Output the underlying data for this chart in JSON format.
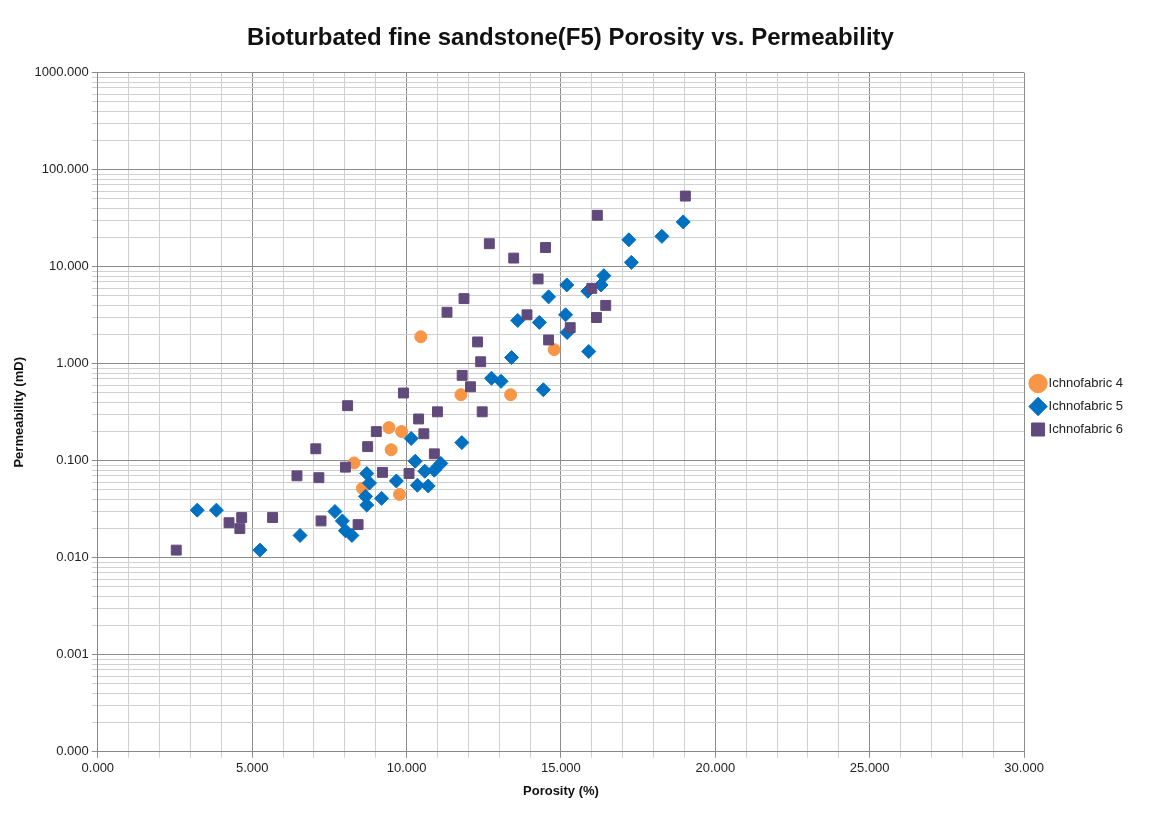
{
  "chart_data": {
    "type": "scatter",
    "title": "Bioturbated fine sandstone(F5) Porosity vs. Permeability",
    "xlabel": "Porosity (%)",
    "ylabel": "Permeability (mD)",
    "log": "y",
    "grid": true,
    "legend": "right",
    "xlim": [
      0,
      30
    ],
    "ylim": [
      0.0001,
      1000
    ],
    "xticks": [
      {
        "value": 0,
        "label": "0.000"
      },
      {
        "value": 1,
        "label": null
      },
      {
        "value": 2,
        "label": null
      },
      {
        "value": 3,
        "label": null
      },
      {
        "value": 4,
        "label": null
      },
      {
        "value": 5,
        "label": "5.000"
      },
      {
        "value": 6,
        "label": null
      },
      {
        "value": 7,
        "label": null
      },
      {
        "value": 8,
        "label": null
      },
      {
        "value": 9,
        "label": null
      },
      {
        "value": 10,
        "label": "10.000"
      },
      {
        "value": 11,
        "label": null
      },
      {
        "value": 12,
        "label": null
      },
      {
        "value": 13,
        "label": null
      },
      {
        "value": 14,
        "label": null
      },
      {
        "value": 15,
        "label": "15.000"
      },
      {
        "value": 16,
        "label": null
      },
      {
        "value": 17,
        "label": null
      },
      {
        "value": 18,
        "label": null
      },
      {
        "value": 19,
        "label": null
      },
      {
        "value": 20,
        "label": "20.000"
      },
      {
        "value": 21,
        "label": null
      },
      {
        "value": 22,
        "label": null
      },
      {
        "value": 23,
        "label": null
      },
      {
        "value": 24,
        "label": null
      },
      {
        "value": 25,
        "label": "25.000"
      },
      {
        "value": 26,
        "label": null
      },
      {
        "value": 27,
        "label": null
      },
      {
        "value": 28,
        "label": null
      },
      {
        "value": 29,
        "label": null
      },
      {
        "value": 30,
        "label": "30.000"
      }
    ],
    "yticks": [
      {
        "value": 0.0001,
        "label": "0.000"
      },
      {
        "value": 0.0002,
        "label": null
      },
      {
        "value": 0.0003,
        "label": null
      },
      {
        "value": 0.0004,
        "label": null
      },
      {
        "value": 0.0005,
        "label": null
      },
      {
        "value": 0.0006,
        "label": null
      },
      {
        "value": 0.0007,
        "label": null
      },
      {
        "value": 0.0008,
        "label": null
      },
      {
        "value": 0.0009,
        "label": null
      },
      {
        "value": 0.001,
        "label": "0.001"
      },
      {
        "value": 0.002,
        "label": null
      },
      {
        "value": 0.003,
        "label": null
      },
      {
        "value": 0.004,
        "label": null
      },
      {
        "value": 0.005,
        "label": null
      },
      {
        "value": 0.006,
        "label": null
      },
      {
        "value": 0.007,
        "label": null
      },
      {
        "value": 0.008,
        "label": null
      },
      {
        "value": 0.009,
        "label": null
      },
      {
        "value": 0.01,
        "label": "0.010"
      },
      {
        "value": 0.02,
        "label": null
      },
      {
        "value": 0.03,
        "label": null
      },
      {
        "value": 0.04,
        "label": null
      },
      {
        "value": 0.05,
        "label": null
      },
      {
        "value": 0.06,
        "label": null
      },
      {
        "value": 0.07,
        "label": null
      },
      {
        "value": 0.08,
        "label": null
      },
      {
        "value": 0.09,
        "label": null
      },
      {
        "value": 0.1,
        "label": "0.100"
      },
      {
        "value": 0.2,
        "label": null
      },
      {
        "value": 0.3,
        "label": null
      },
      {
        "value": 0.4,
        "label": null
      },
      {
        "value": 0.5,
        "label": null
      },
      {
        "value": 0.6,
        "label": null
      },
      {
        "value": 0.7,
        "label": null
      },
      {
        "value": 0.8,
        "label": null
      },
      {
        "value": 0.9,
        "label": null
      },
      {
        "value": 1,
        "label": "1.000"
      },
      {
        "value": 2,
        "label": null
      },
      {
        "value": 3,
        "label": null
      },
      {
        "value": 4,
        "label": null
      },
      {
        "value": 5,
        "label": null
      },
      {
        "value": 6,
        "label": null
      },
      {
        "value": 7,
        "label": null
      },
      {
        "value": 8,
        "label": null
      },
      {
        "value": 9,
        "label": null
      },
      {
        "value": 10,
        "label": "10.000"
      },
      {
        "value": 20,
        "label": null
      },
      {
        "value": 30,
        "label": null
      },
      {
        "value": 40,
        "label": null
      },
      {
        "value": 50,
        "label": null
      },
      {
        "value": 60,
        "label": null
      },
      {
        "value": 70,
        "label": null
      },
      {
        "value": 80,
        "label": null
      },
      {
        "value": 90,
        "label": null
      },
      {
        "value": 100,
        "label": "100.000"
      },
      {
        "value": 200,
        "label": null
      },
      {
        "value": 300,
        "label": null
      },
      {
        "value": 400,
        "label": null
      },
      {
        "value": 500,
        "label": null
      },
      {
        "value": 600,
        "label": null
      },
      {
        "value": 700,
        "label": null
      },
      {
        "value": 800,
        "label": null
      },
      {
        "value": 900,
        "label": null
      },
      {
        "value": 1000,
        "label": "1000.000"
      }
    ],
    "series": [
      {
        "name": "Ichnofabric 4",
        "color": "#f79646",
        "marker": "circle",
        "x": [
          9.43,
          9.84,
          9.5,
          8.3,
          8.57,
          9.77,
          10.46,
          11.76,
          13.37,
          14.78
        ],
        "values": [
          0.22,
          0.2,
          0.13,
          0.095,
          0.052,
          0.045,
          1.9,
          0.48,
          0.48,
          1.4
        ]
      },
      {
        "name": "Ichnofabric 5",
        "color": "#0070c0",
        "marker": "diamond",
        "x": [
          3.22,
          3.84,
          5.25,
          6.55,
          7.68,
          7.92,
          8.02,
          8.23,
          8.71,
          8.8,
          8.67,
          8.71,
          9.19,
          9.67,
          10.15,
          10.28,
          10.35,
          10.7,
          10.59,
          10.9,
          11.11,
          11.79,
          12.75,
          13.06,
          14.43,
          13.4,
          13.6,
          14.3,
          15.15,
          15.2,
          15.9,
          14.6,
          18.96,
          18.27,
          17.2,
          17.28,
          16.39,
          16.3,
          15.87,
          15.19
        ],
        "values": [
          0.031,
          0.031,
          0.012,
          0.017,
          0.03,
          0.024,
          0.019,
          0.017,
          0.074,
          0.059,
          0.043,
          0.035,
          0.041,
          0.062,
          0.17,
          0.099,
          0.056,
          0.055,
          0.078,
          0.08,
          0.094,
          0.154,
          0.71,
          0.66,
          0.54,
          1.16,
          2.8,
          2.67,
          3.2,
          2.1,
          1.34,
          4.9,
          29,
          20.6,
          19,
          11.1,
          8.1,
          6.5,
          5.6,
          6.5
        ]
      },
      {
        "name": "Ichnofabric 6",
        "color": "#604a7b",
        "marker": "square",
        "x": [
          2.54,
          4.25,
          4.66,
          4.6,
          5.66,
          7.23,
          8.43,
          6.45,
          7.16,
          7.06,
          8.02,
          8.74,
          9.02,
          9.22,
          10.08,
          10.9,
          10.39,
          10.56,
          8.09,
          9.9,
          11.0,
          12.45,
          12.07,
          11.8,
          12.4,
          12.3,
          11.31,
          11.86,
          13.9,
          14.6,
          15.3,
          16.45,
          16.15,
          16.0,
          14.26,
          13.47,
          14.5,
          12.68,
          16.18,
          19.03
        ],
        "values": [
          0.012,
          0.023,
          0.026,
          0.02,
          0.026,
          0.024,
          0.022,
          0.07,
          0.067,
          0.133,
          0.086,
          0.14,
          0.2,
          0.076,
          0.074,
          0.118,
          0.27,
          0.19,
          0.37,
          0.5,
          0.32,
          0.32,
          0.58,
          0.76,
          1.05,
          1.68,
          3.4,
          4.7,
          3.2,
          1.76,
          2.36,
          4.0,
          3.0,
          6.0,
          7.5,
          12.3,
          15.8,
          17.3,
          34,
          53.6
        ]
      }
    ]
  }
}
